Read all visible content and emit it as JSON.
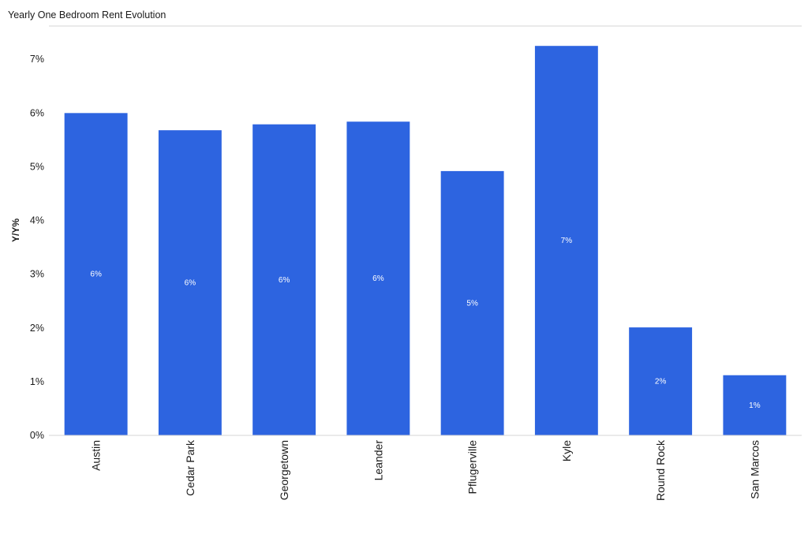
{
  "chart_data": {
    "type": "bar",
    "title": "Yearly One Bedroom Rent Evolution",
    "xlabel": "",
    "ylabel": "Y/Y%",
    "categories": [
      "Austin",
      "Cedar Park",
      "Georgetown",
      "Leander",
      "Pflugerville",
      "Kyle",
      "Round Rock",
      "San Marcos"
    ],
    "values": [
      6.0,
      5.68,
      5.79,
      5.84,
      4.92,
      7.25,
      2.01,
      1.12
    ],
    "data_labels": [
      "6%",
      "6%",
      "6%",
      "6%",
      "5%",
      "7%",
      "2%",
      "1%"
    ],
    "yticks": [
      "0%",
      "1%",
      "2%",
      "3%",
      "4%",
      "5%",
      "6%",
      "7%"
    ],
    "ylim": [
      0,
      7.62
    ],
    "grid": false,
    "bar_color": "#2d64e0"
  }
}
